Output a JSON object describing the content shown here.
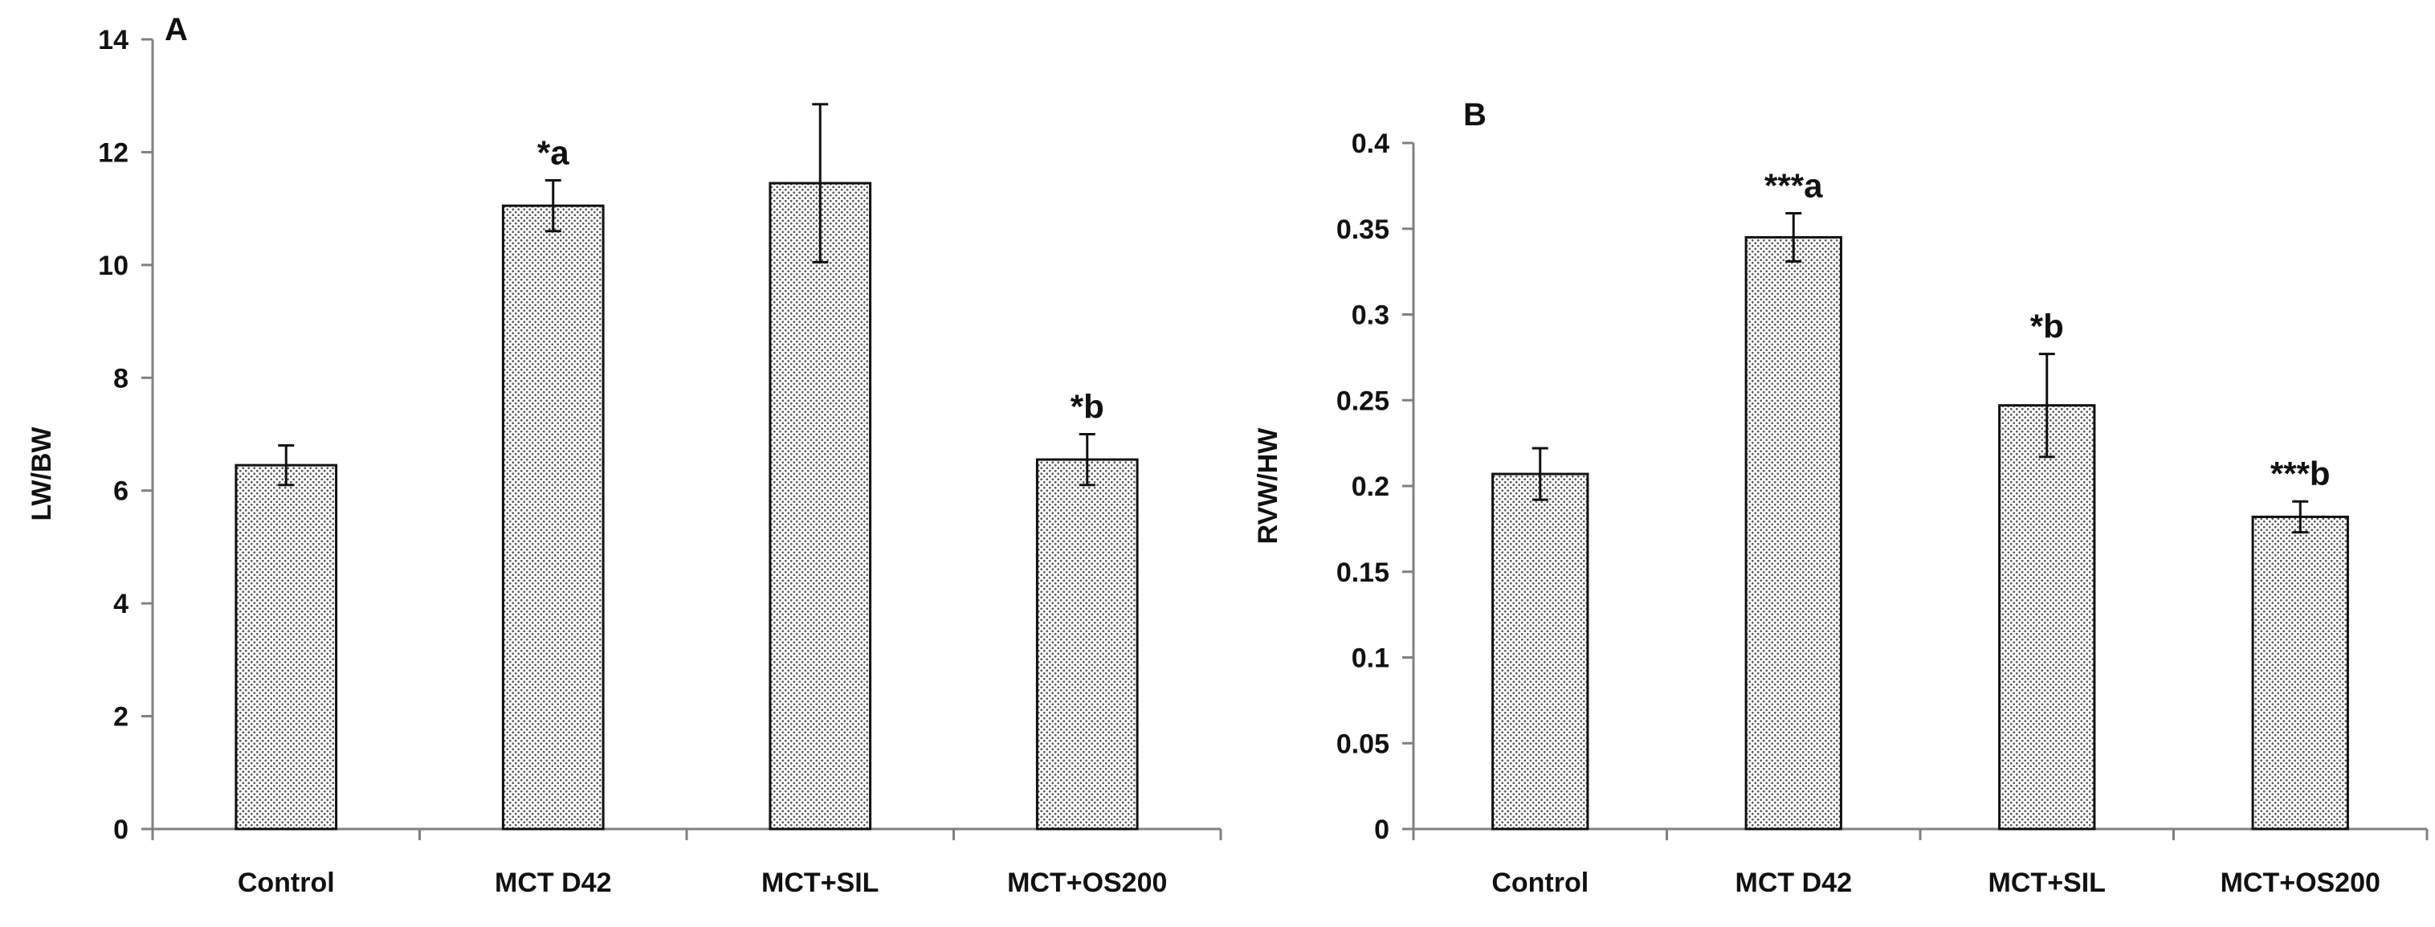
{
  "chart_data": [
    {
      "type": "bar",
      "panel_label": "A",
      "title": "",
      "xlabel": "",
      "ylabel": "LW/BW",
      "ylim": [
        0,
        14
      ],
      "yticks": [
        0,
        2,
        4,
        6,
        8,
        10,
        12,
        14
      ],
      "ytick_labels": [
        "0",
        "2",
        "4",
        "6",
        "8",
        "10",
        "12",
        "14"
      ],
      "categories": [
        "Control",
        "MCT D42",
        "MCT+SIL",
        "MCT+OS200"
      ],
      "values": [
        6.45,
        11.05,
        11.45,
        6.55
      ],
      "errors": [
        0.35,
        0.45,
        1.4,
        0.45
      ],
      "annotations": [
        "",
        "*a",
        "",
        "*b"
      ],
      "bar_pattern": "dotted",
      "grid": false
    },
    {
      "type": "bar",
      "panel_label": "B",
      "title": "",
      "xlabel": "",
      "ylabel": "RVW/HW",
      "ylim": [
        0,
        0.4
      ],
      "yticks": [
        0,
        0.05,
        0.1,
        0.15,
        0.2,
        0.25,
        0.3,
        0.35,
        0.4
      ],
      "ytick_labels": [
        "0",
        "0.05",
        "0.1",
        "0.15",
        "0.2",
        "0.25",
        "0.3",
        "0.35",
        "0.4"
      ],
      "categories": [
        "Control",
        "MCT D42",
        "MCT+SIL",
        "MCT+OS200"
      ],
      "values": [
        0.207,
        0.345,
        0.247,
        0.182
      ],
      "errors": [
        0.015,
        0.014,
        0.03,
        0.009
      ],
      "annotations": [
        "",
        "***a",
        "*b",
        "***b"
      ],
      "bar_pattern": "dotted",
      "grid": false
    }
  ]
}
